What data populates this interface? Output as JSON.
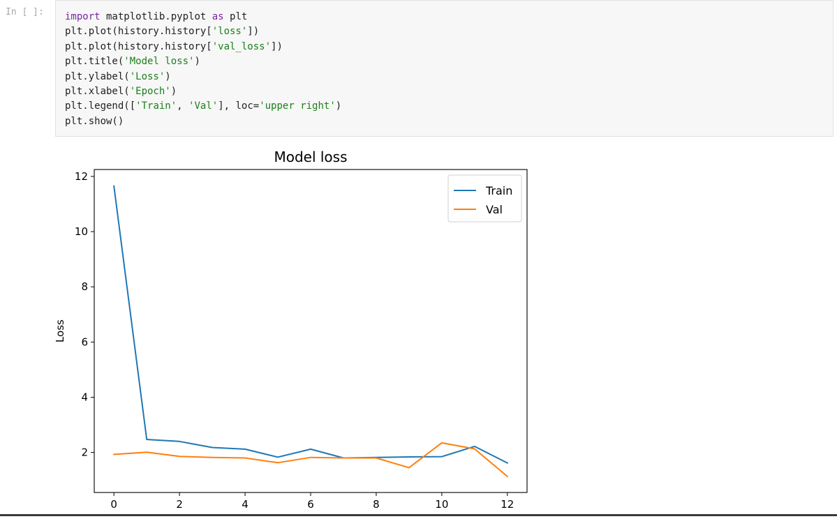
{
  "cell": {
    "prompt": "In [ ]:",
    "code_lines": [
      [
        {
          "t": "import",
          "c": "kw"
        },
        {
          "t": " matplotlib.pyplot ",
          "c": "fn"
        },
        {
          "t": "as",
          "c": "kw"
        },
        {
          "t": " plt",
          "c": "fn"
        }
      ],
      [
        {
          "t": "plt.plot(history.history[",
          "c": "fn"
        },
        {
          "t": "'loss'",
          "c": "st"
        },
        {
          "t": "])",
          "c": "fn"
        }
      ],
      [
        {
          "t": "plt.plot(history.history[",
          "c": "fn"
        },
        {
          "t": "'val_loss'",
          "c": "st"
        },
        {
          "t": "])",
          "c": "fn"
        }
      ],
      [
        {
          "t": "plt.title(",
          "c": "fn"
        },
        {
          "t": "'Model loss'",
          "c": "st"
        },
        {
          "t": ")",
          "c": "fn"
        }
      ],
      [
        {
          "t": "plt.ylabel(",
          "c": "fn"
        },
        {
          "t": "'Loss'",
          "c": "st"
        },
        {
          "t": ")",
          "c": "fn"
        }
      ],
      [
        {
          "t": "plt.xlabel(",
          "c": "fn"
        },
        {
          "t": "'Epoch'",
          "c": "st"
        },
        {
          "t": ")",
          "c": "fn"
        }
      ],
      [
        {
          "t": "plt.legend([",
          "c": "fn"
        },
        {
          "t": "'Train'",
          "c": "st"
        },
        {
          "t": ", ",
          "c": "fn"
        },
        {
          "t": "'Val'",
          "c": "st"
        },
        {
          "t": "], loc=",
          "c": "fn"
        },
        {
          "t": "'upper right'",
          "c": "st"
        },
        {
          "t": ")",
          "c": "fn"
        }
      ],
      [
        {
          "t": "plt.show()",
          "c": "fn"
        }
      ]
    ]
  },
  "chart_data": {
    "type": "line",
    "title": "Model loss",
    "xlabel": "",
    "ylabel": "Loss",
    "x": [
      0,
      1,
      2,
      3,
      4,
      5,
      6,
      7,
      8,
      9,
      10,
      11,
      12
    ],
    "xlim": [
      -0.6,
      12.6
    ],
    "ylim": [
      0.55,
      12.25
    ],
    "xticks": [
      0,
      2,
      4,
      6,
      8,
      10,
      12
    ],
    "yticks": [
      2,
      4,
      6,
      8,
      10,
      12
    ],
    "legend_position": "upper right",
    "series": [
      {
        "name": "Train",
        "color": "#1f77b4",
        "values": [
          11.65,
          2.47,
          2.4,
          2.18,
          2.12,
          1.83,
          2.12,
          1.8,
          1.82,
          1.84,
          1.85,
          2.22,
          1.62
        ]
      },
      {
        "name": "Val",
        "color": "#ff7f0e",
        "values": [
          1.93,
          2.01,
          1.86,
          1.82,
          1.8,
          1.63,
          1.82,
          1.8,
          1.8,
          1.45,
          2.35,
          2.13,
          1.13
        ]
      }
    ]
  }
}
